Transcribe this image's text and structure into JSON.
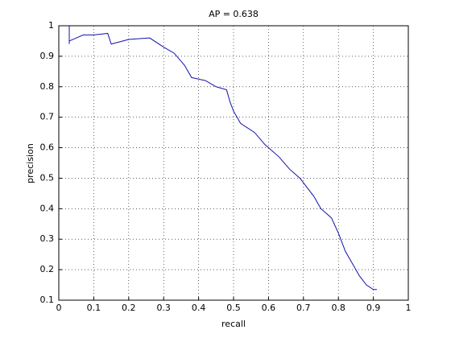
{
  "chart_data": {
    "type": "line",
    "title": "AP = 0.638",
    "xlabel": "recall",
    "ylabel": "precision",
    "x": [
      0.03,
      0.03,
      0.03,
      0.05,
      0.07,
      0.1,
      0.14,
      0.15,
      0.2,
      0.26,
      0.3,
      0.33,
      0.36,
      0.38,
      0.42,
      0.45,
      0.48,
      0.49,
      0.5,
      0.52,
      0.56,
      0.59,
      0.63,
      0.66,
      0.69,
      0.71,
      0.73,
      0.75,
      0.78,
      0.8,
      0.82,
      0.84,
      0.86,
      0.88,
      0.9,
      0.91
    ],
    "series": [
      {
        "name": "precision",
        "color": "#1010b0",
        "values": [
          1,
          0.94,
          0.95,
          0.96,
          0.97,
          0.97,
          0.975,
          0.94,
          0.955,
          0.96,
          0.93,
          0.91,
          0.87,
          0.83,
          0.82,
          0.8,
          0.79,
          0.75,
          0.72,
          0.68,
          0.65,
          0.61,
          0.57,
          0.53,
          0.5,
          0.47,
          0.44,
          0.4,
          0.37,
          0.32,
          0.26,
          0.22,
          0.18,
          0.15,
          0.135,
          0.135
        ]
      }
    ],
    "xlim": [
      0,
      1
    ],
    "ylim": [
      0.1,
      1
    ],
    "xticks": [
      0,
      0.1,
      0.2,
      0.3,
      0.4,
      0.5,
      0.6,
      0.7,
      0.8,
      0.9,
      1
    ],
    "yticks": [
      0.1,
      0.2,
      0.3,
      0.4,
      0.5,
      0.6,
      0.7,
      0.8,
      0.9,
      1
    ],
    "grid": true
  }
}
